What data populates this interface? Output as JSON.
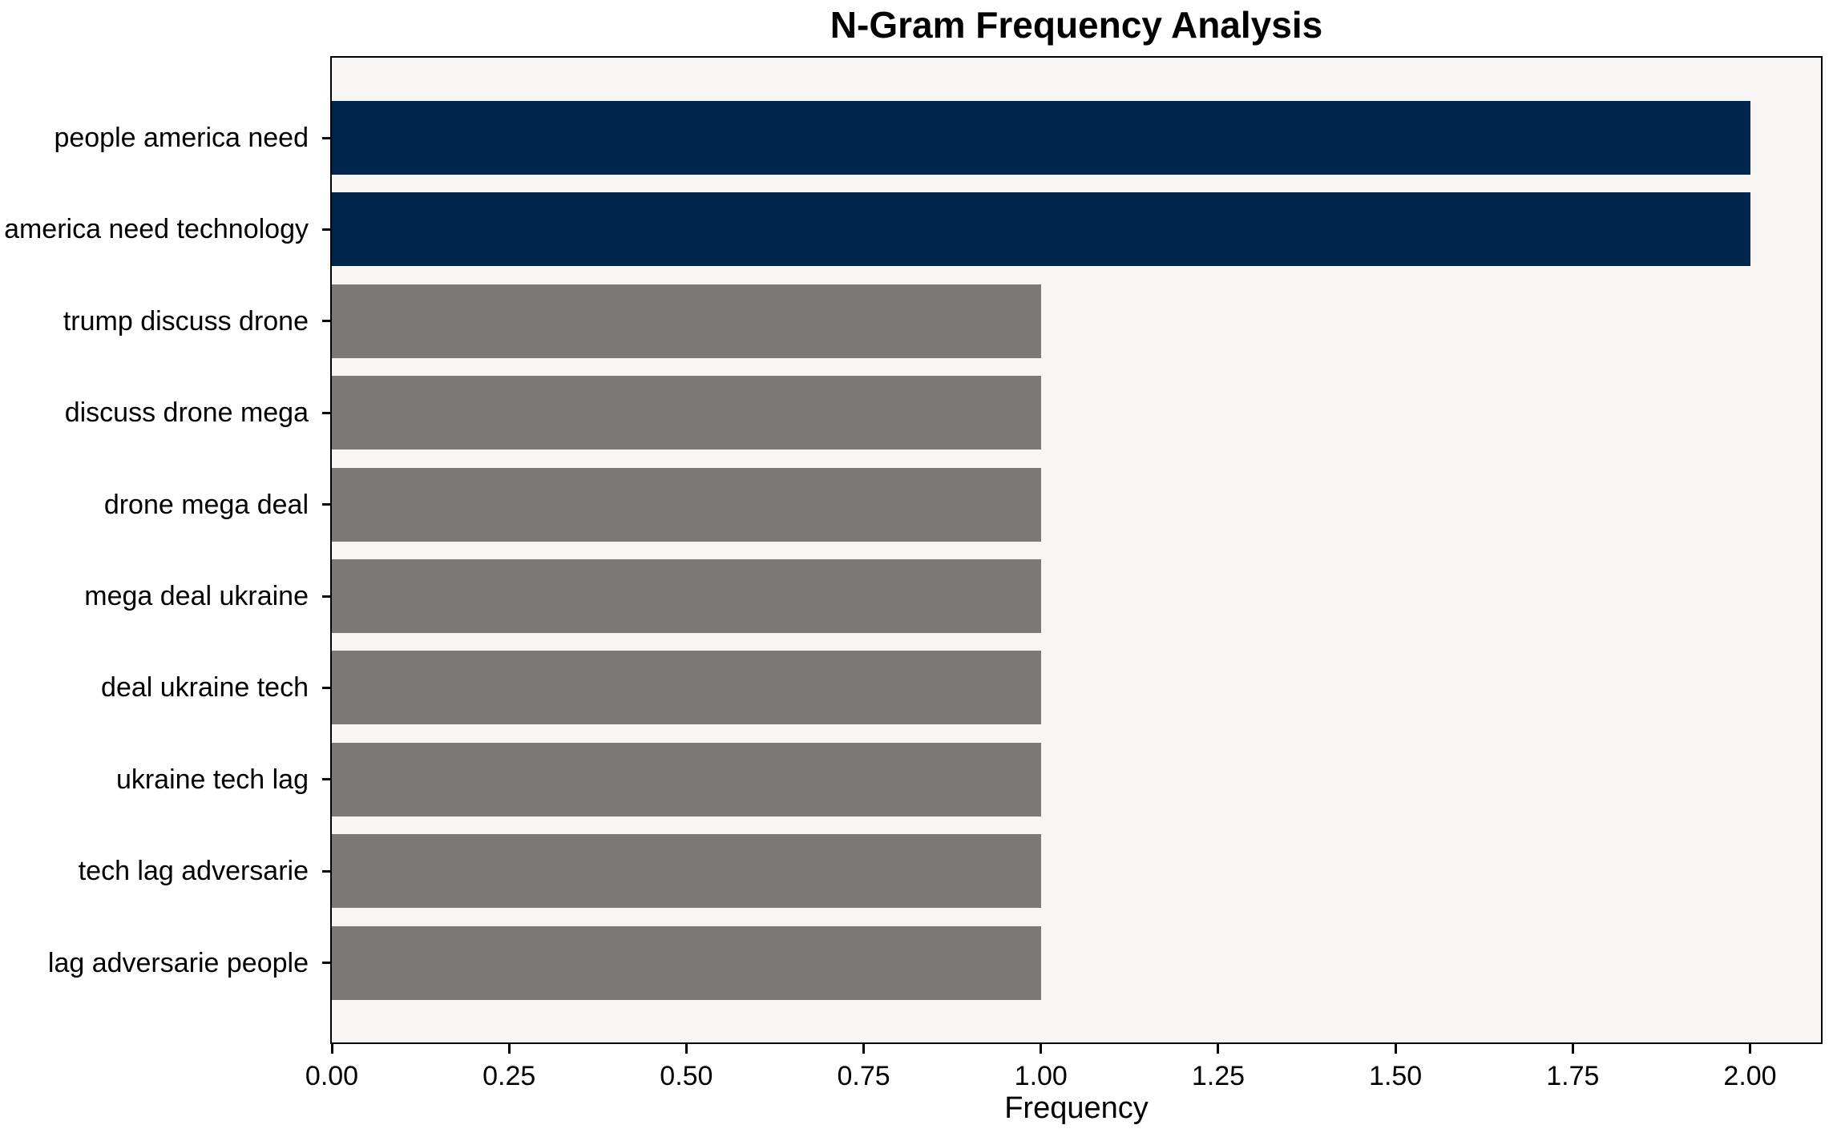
{
  "chart_data": {
    "type": "bar",
    "orientation": "horizontal",
    "title": "N-Gram Frequency Analysis",
    "xlabel": "Frequency",
    "ylabel": "",
    "categories": [
      "people america need",
      "america need technology",
      "trump discuss drone",
      "discuss drone mega",
      "drone mega deal",
      "mega deal ukraine",
      "deal ukraine tech",
      "ukraine tech lag",
      "tech lag adversarie",
      "lag adversarie people"
    ],
    "values": [
      2,
      2,
      1,
      1,
      1,
      1,
      1,
      1,
      1,
      1
    ],
    "bar_colors": [
      "#00254d",
      "#00254d",
      "#7b7975",
      "#7b7975",
      "#7b7975",
      "#7b7975",
      "#7b7975",
      "#7b7975",
      "#7b7975",
      "#7b7975"
    ],
    "xlim": [
      0,
      2.1
    ],
    "xtick_labels": [
      "0.00",
      "0.25",
      "0.50",
      "0.75",
      "1.00",
      "1.25",
      "1.50",
      "1.75",
      "2.00"
    ],
    "xtick_values": [
      0,
      0.25,
      0.5,
      0.75,
      1.0,
      1.25,
      1.5,
      1.75,
      2.0
    ],
    "grid": false,
    "legend": null,
    "colors": {
      "highlight_bar": "#00254d",
      "default_bar": "#7b7975",
      "plot_background": "#f7f6f5",
      "figure_background": "#ffffff",
      "axis": "#000000",
      "text": "#000000"
    }
  }
}
